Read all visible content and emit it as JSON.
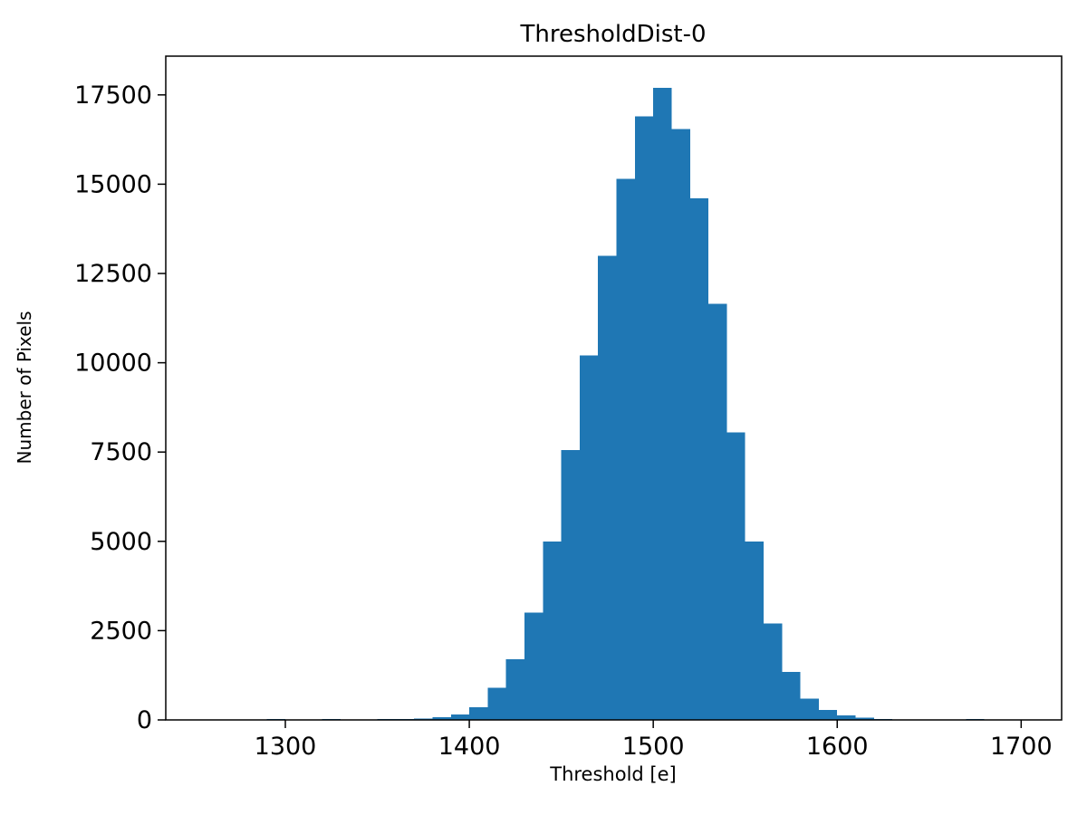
{
  "figure": {
    "background": "#ffffff",
    "plot_background": "#ffffff",
    "spine_color": "#000000",
    "text_color": "#000000"
  },
  "chart_data": {
    "type": "bar",
    "title": "ThresholdDist-0",
    "xlabel": "Threshold [e]",
    "ylabel": "Number of Pixels",
    "bar_color": "#1f77b4",
    "grid": false,
    "legend": "none",
    "xlim": [
      1235,
      1722
    ],
    "ylim": [
      0,
      18585
    ],
    "xticks": [
      1300,
      1400,
      1500,
      1600,
      1700
    ],
    "yticks": [
      0,
      2500,
      5000,
      7500,
      10000,
      12500,
      15000,
      17500
    ],
    "bin_start": 1280,
    "bin_width": 10,
    "values": [
      10,
      25,
      15,
      10,
      20,
      15,
      15,
      20,
      25,
      40,
      80,
      150,
      350,
      900,
      1700,
      3000,
      5000,
      7550,
      10200,
      13000,
      15150,
      16900,
      17700,
      16550,
      14600,
      11650,
      8050,
      5000,
      2700,
      1350,
      600,
      280,
      130,
      60,
      30,
      15,
      10,
      10,
      10,
      20,
      10,
      5,
      5
    ]
  }
}
